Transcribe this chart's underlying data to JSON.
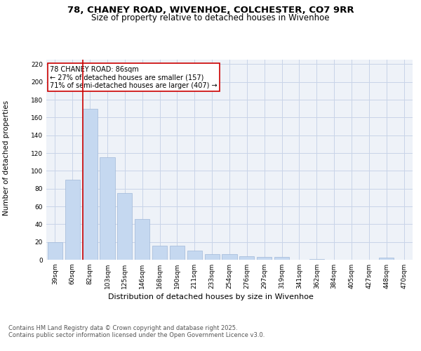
{
  "title_line1": "78, CHANEY ROAD, WIVENHOE, COLCHESTER, CO7 9RR",
  "title_line2": "Size of property relative to detached houses in Wivenhoe",
  "xlabel": "Distribution of detached houses by size in Wivenhoe",
  "ylabel": "Number of detached properties",
  "categories": [
    "39sqm",
    "60sqm",
    "82sqm",
    "103sqm",
    "125sqm",
    "146sqm",
    "168sqm",
    "190sqm",
    "211sqm",
    "233sqm",
    "254sqm",
    "276sqm",
    "297sqm",
    "319sqm",
    "341sqm",
    "362sqm",
    "384sqm",
    "405sqm",
    "427sqm",
    "448sqm",
    "470sqm"
  ],
  "values": [
    20,
    90,
    170,
    115,
    75,
    46,
    16,
    16,
    10,
    6,
    6,
    4,
    3,
    3,
    0,
    1,
    0,
    0,
    0,
    2,
    0
  ],
  "bar_color": "#c5d8f0",
  "bar_edgecolor": "#a0b8d8",
  "grid_color": "#c8d4e8",
  "background_color": "#eef2f8",
  "vline_color": "#cc0000",
  "vline_x_index": 1.6,
  "annotation_text": "78 CHANEY ROAD: 86sqm\n← 27% of detached houses are smaller (157)\n71% of semi-detached houses are larger (407) →",
  "annotation_box_edgecolor": "#cc0000",
  "ylim": [
    0,
    225
  ],
  "yticks": [
    0,
    20,
    40,
    60,
    80,
    100,
    120,
    140,
    160,
    180,
    200,
    220
  ],
  "footer": "Contains HM Land Registry data © Crown copyright and database right 2025.\nContains public sector information licensed under the Open Government Licence v3.0.",
  "title_fontsize": 9.5,
  "subtitle_fontsize": 8.5,
  "tick_fontsize": 6.5,
  "xlabel_fontsize": 8,
  "ylabel_fontsize": 7.5,
  "annotation_fontsize": 7,
  "footer_fontsize": 6
}
